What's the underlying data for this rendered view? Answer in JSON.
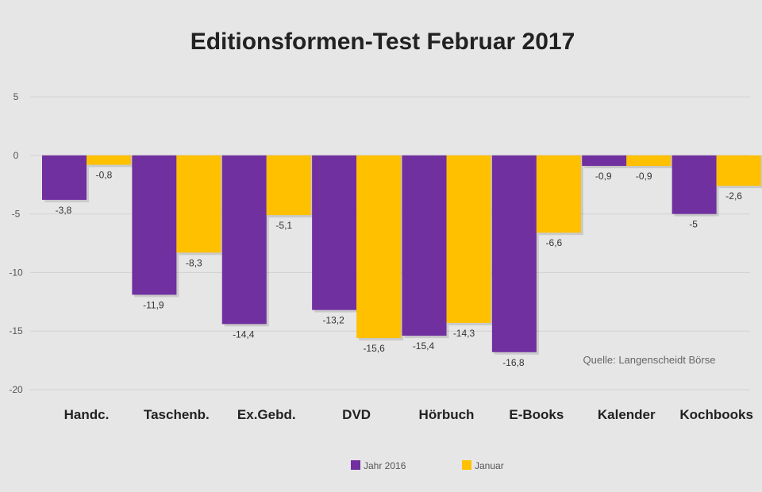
{
  "chart_data": {
    "type": "bar",
    "title": "Editionsformen-Test Februar 2017",
    "source": "Quelle: Langenscheidt Börse",
    "categories": [
      "Handc.",
      "Taschenb.",
      "Ex.Gebd.",
      "DVD",
      "Hörbuch",
      "E-Books",
      "Kalender",
      "Kochbooks"
    ],
    "series": [
      {
        "name": "Jahr 2016",
        "color": "#7030a0",
        "values": [
          -3.8,
          -11.9,
          -14.4,
          -13.2,
          -15.4,
          -16.8,
          -0.9,
          -5.0
        ],
        "labels": [
          "-3,8",
          "-11,9",
          "-14,4",
          "-13,2",
          "-15,4",
          "-16,8",
          "-0,9",
          "-5"
        ]
      },
      {
        "name": "Januar",
        "color": "#ffc000",
        "values": [
          -0.8,
          -8.3,
          -5.1,
          -15.6,
          -14.3,
          -6.6,
          -0.9,
          -2.6
        ],
        "labels": [
          "-0,8",
          "-8,3",
          "-5,1",
          "-15,6",
          "-14,3",
          "-6,6",
          "-0,9",
          "-2,6"
        ]
      }
    ],
    "yticks": [
      5,
      0,
      -5,
      -10,
      -15,
      -20
    ],
    "ylim": [
      -20,
      5
    ],
    "legend": "bottom-center",
    "grid": true
  }
}
